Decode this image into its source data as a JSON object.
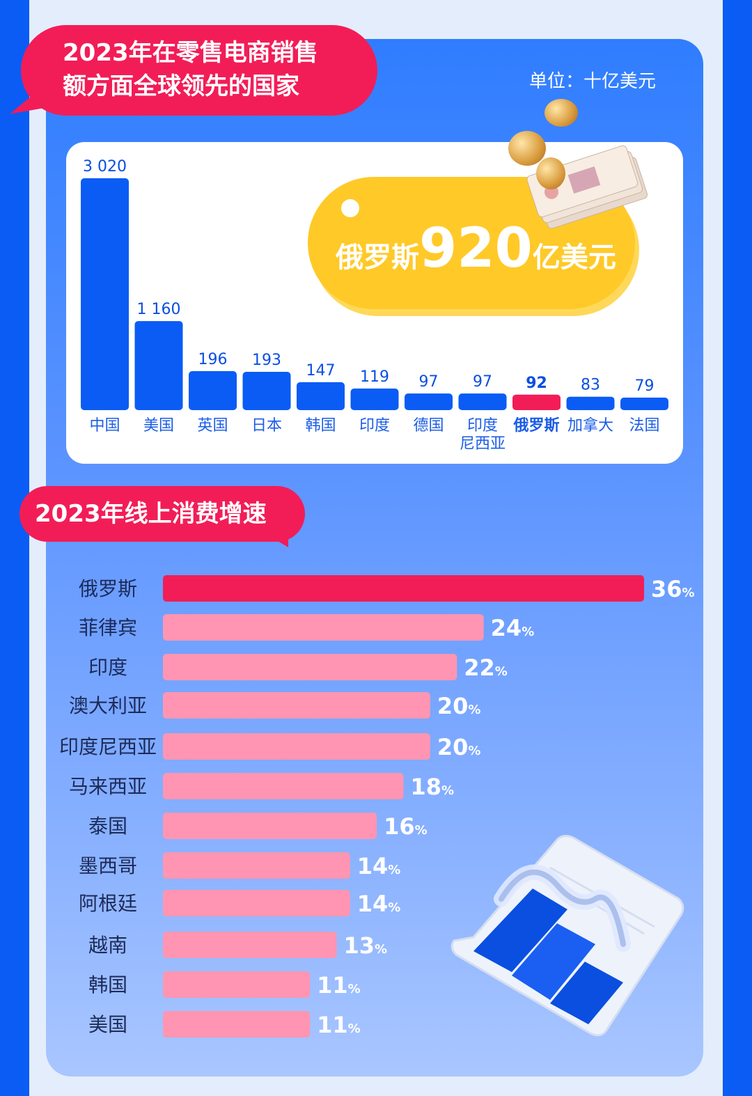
{
  "heading1": "2023年在零售电商销售额方面全球领先的国家",
  "heading1_lines": [
    "2023年在零售电商销售",
    "额方面全球领先的国家"
  ],
  "unit": "单位：十亿美元",
  "tag": {
    "prefix": "俄罗斯",
    "value": "920",
    "suffix": "亿美元"
  },
  "heading2": "2023年线上消费增速",
  "colors": {
    "blue": "#0a5cf5",
    "red": "#f21d57",
    "pink": "#ff95b2",
    "yellow": "#ffc928"
  },
  "chart_data": [
    {
      "type": "bar",
      "title": "2023年在零售电商销售额方面全球领先的国家",
      "unit": "十亿美元",
      "categories": [
        "中国",
        "美国",
        "英国",
        "日本",
        "韩国",
        "印度",
        "德国",
        "印度尼西亚",
        "俄罗斯",
        "加拿大",
        "法国"
      ],
      "category_lines": [
        [
          "中国"
        ],
        [
          "美国"
        ],
        [
          "英国"
        ],
        [
          "日本"
        ],
        [
          "韩国"
        ],
        [
          "印度"
        ],
        [
          "德国"
        ],
        [
          "印度",
          "尼西亚"
        ],
        [
          "俄罗斯"
        ],
        [
          "加拿大"
        ],
        [
          "法国"
        ]
      ],
      "values": [
        3020,
        1160,
        196,
        193,
        147,
        119,
        97,
        97,
        92,
        83,
        79
      ],
      "value_labels": [
        "3 020",
        "1 160",
        "196",
        "193",
        "147",
        "119",
        "97",
        "97",
        "92",
        "83",
        "79"
      ],
      "highlight": "俄罗斯"
    },
    {
      "type": "bar",
      "orientation": "horizontal",
      "title": "2023年线上消费增速",
      "categories": [
        "俄罗斯",
        "菲律宾",
        "印度",
        "澳大利亚",
        "印度尼西亚",
        "马来西亚",
        "泰国",
        "墨西哥",
        "阿根廷",
        "越南",
        "韩国",
        "美国"
      ],
      "values": [
        36,
        24,
        22,
        20,
        20,
        18,
        16,
        14,
        14,
        13,
        11,
        11
      ],
      "value_suffix": "%",
      "highlight": "俄罗斯"
    }
  ]
}
